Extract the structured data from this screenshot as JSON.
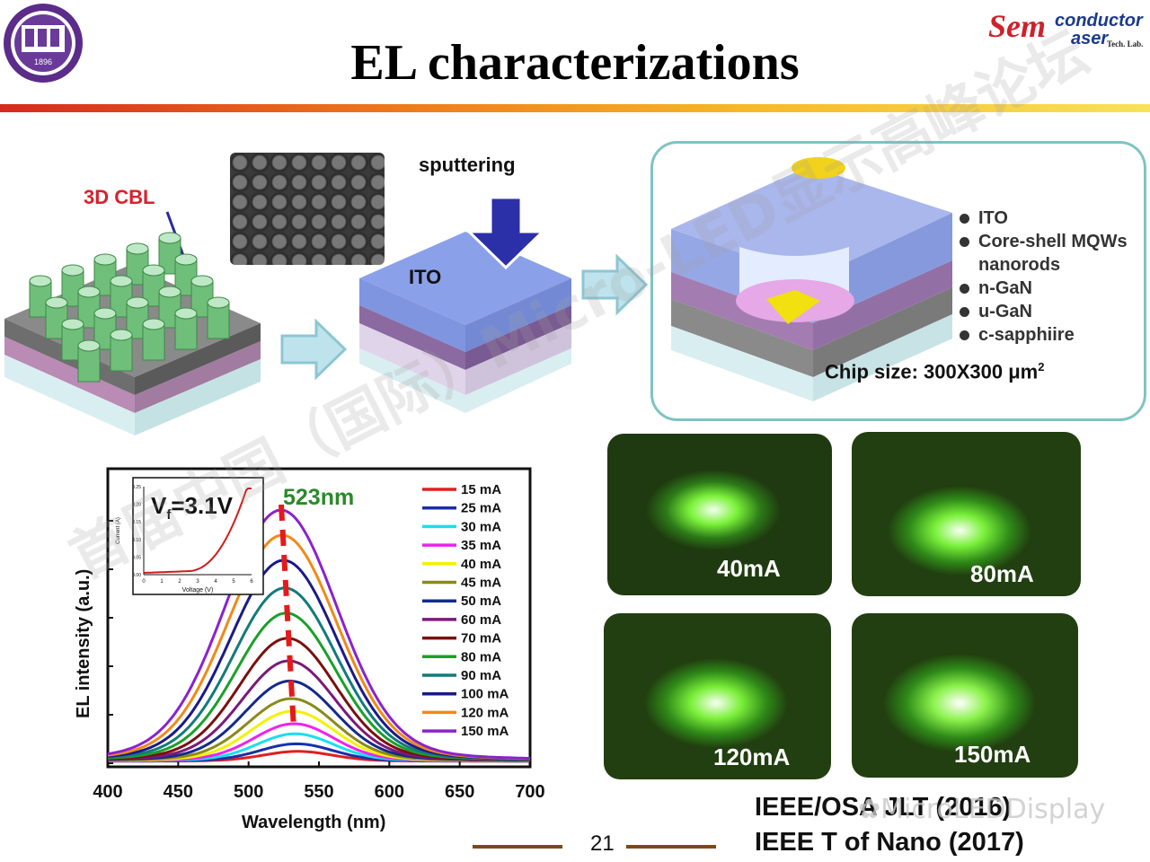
{
  "slide": {
    "title": "EL characterizations",
    "page_number": "21"
  },
  "logos": {
    "left_logo_year": "1896",
    "right_logo_text_1": "Sem",
    "right_logo_text_2": "conductor",
    "right_logo_text_3": "aser",
    "right_logo_text_4": "Tech. Lab."
  },
  "process": {
    "cbl_label": "3D CBL",
    "sputtering_label": "sputtering",
    "ito_label": "ITO"
  },
  "structure_legend": {
    "items": [
      "ITO",
      "Core-shell MQWs nanorods",
      "n-GaN",
      "u-GaN",
      "c-sapphiire"
    ],
    "chip_size_prefix": "Chip size: 300X300 μm",
    "chip_size_sup": "2"
  },
  "photos": [
    {
      "label": "40mA"
    },
    {
      "label": "80mA"
    },
    {
      "label": "120mA"
    },
    {
      "label": "150mA"
    }
  ],
  "chart_data": {
    "type": "line",
    "xlabel": "Wavelength (nm)",
    "ylabel": "EL intensity (a.u.)",
    "xlim": [
      400,
      700
    ],
    "x_ticks": [
      "400",
      "450",
      "500",
      "550",
      "600",
      "650",
      "700"
    ],
    "peak_annotation": "523nm",
    "series": [
      {
        "name": "15 mA",
        "color": "#e02020",
        "peak": 0.04
      },
      {
        "name": "25 mA",
        "color": "#1a2fa8",
        "peak": 0.07
      },
      {
        "name": "30 mA",
        "color": "#16e0f0",
        "peak": 0.11
      },
      {
        "name": "35 mA",
        "color": "#ee22ee",
        "peak": 0.15
      },
      {
        "name": "40 mA",
        "color": "#f2f200",
        "peak": 0.2
      },
      {
        "name": "45 mA",
        "color": "#8a8a1a",
        "peak": 0.25
      },
      {
        "name": "50 mA",
        "color": "#142a8a",
        "peak": 0.32
      },
      {
        "name": "60 mA",
        "color": "#7a1a7a",
        "peak": 0.4
      },
      {
        "name": "70 mA",
        "color": "#7a1010",
        "peak": 0.49
      },
      {
        "name": "80 mA",
        "color": "#1aa02a",
        "peak": 0.59
      },
      {
        "name": "90 mA",
        "color": "#147a7a",
        "peak": 0.69
      },
      {
        "name": "100 mA",
        "color": "#1a1a8a",
        "peak": 0.8
      },
      {
        "name": "120 mA",
        "color": "#f08a18",
        "peak": 0.9
      },
      {
        "name": "150 mA",
        "color": "#8a22d0",
        "peak": 1.0
      }
    ],
    "inset": {
      "label_prefix": "V",
      "label_sub": "f",
      "label_suffix": "=3.1V",
      "xlabel": "Voltage (V)",
      "ylabel": "Current (A)",
      "x_ticks": [
        "0",
        "1",
        "2",
        "3",
        "4",
        "5",
        "6"
      ],
      "y_ticks": [
        "0.00",
        "0.05",
        "0.10",
        "0.15",
        "0.20",
        "0.25"
      ]
    }
  },
  "references": {
    "line1": "IEEE/OSA JLT (2016)",
    "line2": "IEEE T of  Nano (2017)"
  },
  "watermarks": {
    "wm1": "首届中国（国际）Micro-LED显示高峰论坛",
    "wm2": "MicroLEDDisplay"
  }
}
